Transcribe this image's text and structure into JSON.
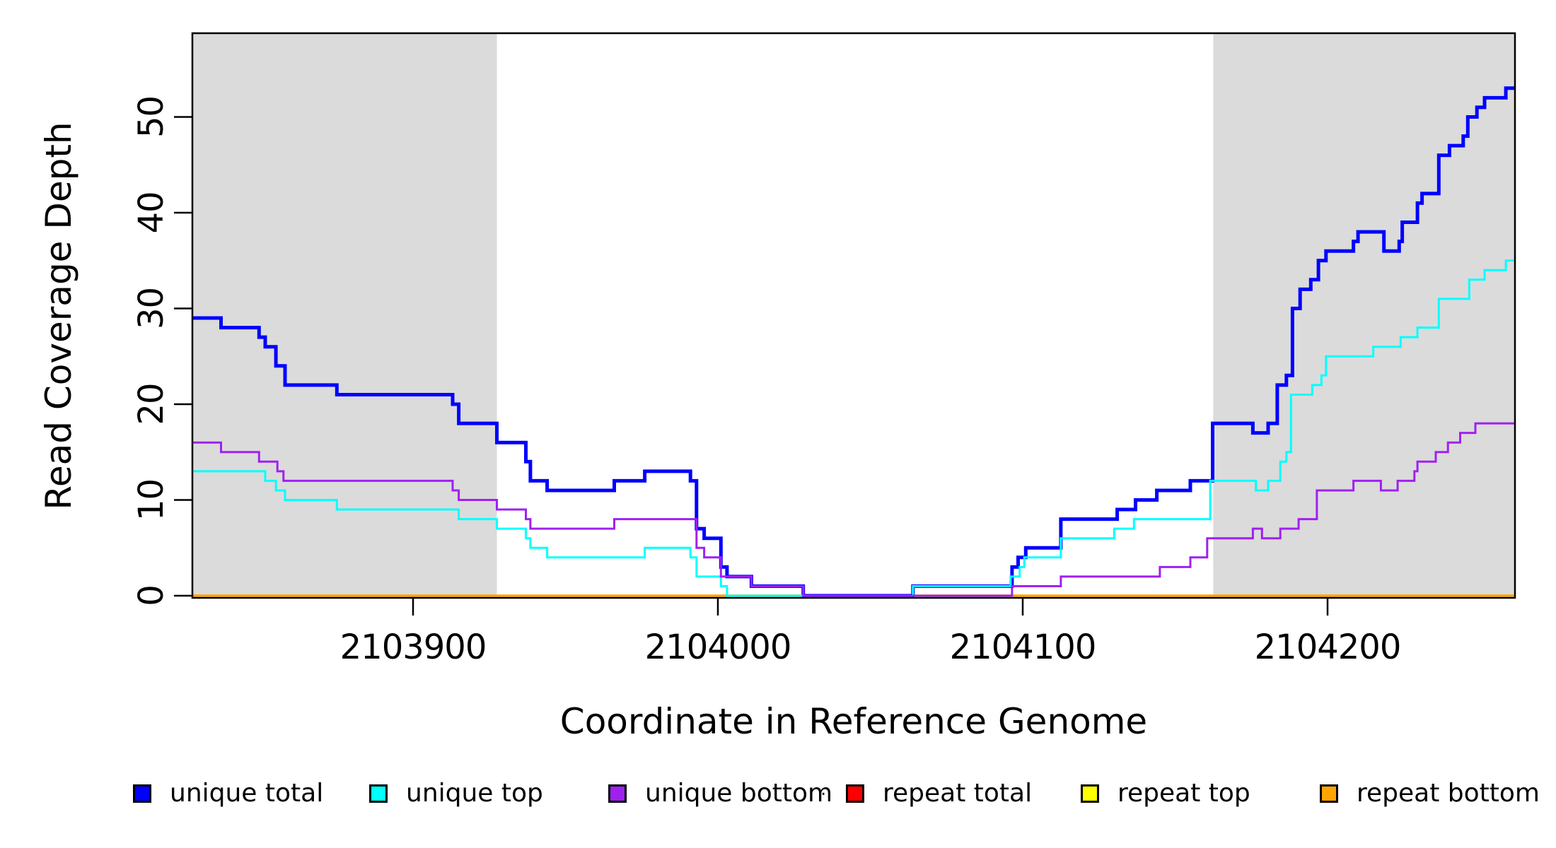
{
  "chart_data": {
    "type": "line",
    "line_style": "step",
    "title": "",
    "xlabel": "Coordinate in Reference Genome",
    "ylabel": "Read Coverage Depth",
    "xlim": [
      2103827.6,
      2104261.5
    ],
    "ylim": [
      0,
      58.8
    ],
    "x_ticks": [
      "2103900",
      "2104000",
      "2104100",
      "2104200"
    ],
    "y_ticks": [
      "0",
      "10",
      "20",
      "30",
      "40",
      "50"
    ],
    "grid": false,
    "legend_position": "bottom",
    "background_color": "#FFFFFF",
    "band_color": "#DBDBDB",
    "axis_color": "#000000",
    "shaded_regions": [
      {
        "from": 2103827.6,
        "to": 2103927.5
      },
      {
        "from": 2104162.5,
        "to": 2104261.5
      }
    ],
    "series": [
      {
        "name": "unique total",
        "color": "#0000FF",
        "line_width": 5,
        "points": [
          [
            2103827.6,
            29
          ],
          [
            2103837,
            28
          ],
          [
            2103849.5,
            27
          ],
          [
            2103851.5,
            26
          ],
          [
            2103855,
            24
          ],
          [
            2103858,
            22
          ],
          [
            2103875,
            21
          ],
          [
            2103913,
            20
          ],
          [
            2103915,
            18
          ],
          [
            2103927.5,
            16
          ],
          [
            2103937,
            14
          ],
          [
            2103938.5,
            12
          ],
          [
            2103944,
            11
          ],
          [
            2103966,
            12
          ],
          [
            2103976,
            13
          ],
          [
            2103991,
            12
          ],
          [
            2103993,
            7
          ],
          [
            2103995.5,
            6
          ],
          [
            2104001,
            3
          ],
          [
            2104003,
            2
          ],
          [
            2104011,
            1
          ],
          [
            2104028,
            0
          ],
          [
            2104064,
            1
          ],
          [
            2104096.5,
            3
          ],
          [
            2104098.5,
            4
          ],
          [
            2104101,
            5
          ],
          [
            2104112.5,
            8
          ],
          [
            2104131,
            9
          ],
          [
            2104137,
            10
          ],
          [
            2104144,
            11
          ],
          [
            2104155,
            12
          ],
          [
            2104162.3,
            18
          ],
          [
            2104175.5,
            17
          ],
          [
            2104180.5,
            18
          ],
          [
            2104183.5,
            22
          ],
          [
            2104186.5,
            23
          ],
          [
            2104188.5,
            30
          ],
          [
            2104191,
            32
          ],
          [
            2104194.5,
            33
          ],
          [
            2104197,
            35
          ],
          [
            2104199.5,
            36
          ],
          [
            2104208.5,
            37
          ],
          [
            2104210,
            38
          ],
          [
            2104218.5,
            36
          ],
          [
            2104223.5,
            37
          ],
          [
            2104224.5,
            39
          ],
          [
            2104229.5,
            41
          ],
          [
            2104231,
            42
          ],
          [
            2104236.5,
            46
          ],
          [
            2104240,
            47
          ],
          [
            2104244.5,
            48
          ],
          [
            2104246,
            50
          ],
          [
            2104249,
            51
          ],
          [
            2104251.5,
            52
          ],
          [
            2104258.5,
            53
          ]
        ]
      },
      {
        "name": "unique top",
        "color": "#00FFFF",
        "line_width": 3,
        "points": [
          [
            2103827.6,
            13
          ],
          [
            2103851.5,
            12
          ],
          [
            2103855,
            11
          ],
          [
            2103858,
            10
          ],
          [
            2103875,
            9
          ],
          [
            2103915,
            8
          ],
          [
            2103927.5,
            7
          ],
          [
            2103937,
            6
          ],
          [
            2103938.5,
            5
          ],
          [
            2103944,
            4
          ],
          [
            2103976,
            5
          ],
          [
            2103991,
            4
          ],
          [
            2103993,
            2
          ],
          [
            2104001,
            1
          ],
          [
            2104003,
            0
          ],
          [
            2104064,
            1
          ],
          [
            2104096,
            2
          ],
          [
            2104099,
            3
          ],
          [
            2104100.5,
            4
          ],
          [
            2104112.5,
            6
          ],
          [
            2104130,
            7
          ],
          [
            2104136.5,
            8
          ],
          [
            2104161.5,
            12
          ],
          [
            2104176.5,
            11
          ],
          [
            2104180.5,
            12
          ],
          [
            2104184.5,
            14
          ],
          [
            2104186.5,
            15
          ],
          [
            2104188,
            21
          ],
          [
            2104195,
            22
          ],
          [
            2104198,
            23
          ],
          [
            2104199.5,
            25
          ],
          [
            2104215,
            26
          ],
          [
            2104224,
            27
          ],
          [
            2104229.5,
            28
          ],
          [
            2104236.5,
            31
          ],
          [
            2104246.5,
            33
          ],
          [
            2104251.5,
            34
          ],
          [
            2104258.5,
            35
          ]
        ]
      },
      {
        "name": "unique bottom",
        "color": "#A020F0",
        "line_width": 3,
        "points": [
          [
            2103827.6,
            16
          ],
          [
            2103837,
            15
          ],
          [
            2103849.5,
            14
          ],
          [
            2103855.5,
            13
          ],
          [
            2103857.5,
            12
          ],
          [
            2103913,
            11
          ],
          [
            2103915,
            10
          ],
          [
            2103927.5,
            9
          ],
          [
            2103937,
            8
          ],
          [
            2103938.5,
            7
          ],
          [
            2103966,
            8
          ],
          [
            2103993,
            5
          ],
          [
            2103995.5,
            4
          ],
          [
            2104001,
            2
          ],
          [
            2104011,
            1
          ],
          [
            2104028,
            0
          ],
          [
            2104096.5,
            1
          ],
          [
            2104112.5,
            2
          ],
          [
            2104145,
            3
          ],
          [
            2104155,
            4
          ],
          [
            2104160.5,
            6
          ],
          [
            2104175.5,
            7
          ],
          [
            2104178.5,
            6
          ],
          [
            2104184.5,
            7
          ],
          [
            2104190.5,
            8
          ],
          [
            2104196.5,
            11
          ],
          [
            2104208.5,
            12
          ],
          [
            2104217.5,
            11
          ],
          [
            2104223,
            12
          ],
          [
            2104228.5,
            13
          ],
          [
            2104229.5,
            14
          ],
          [
            2104235.5,
            15
          ],
          [
            2104239.5,
            16
          ],
          [
            2104243.5,
            17
          ],
          [
            2104248.5,
            18
          ]
        ]
      },
      {
        "name": "repeat total",
        "color": "#FF0000",
        "line_width": 3,
        "points": [
          [
            2103827.6,
            0
          ]
        ]
      },
      {
        "name": "repeat top",
        "color": "#FFFF00",
        "line_width": 3,
        "points": [
          [
            2103827.6,
            0
          ]
        ]
      },
      {
        "name": "repeat bottom",
        "color": "#FFA500",
        "line_width": 3.5,
        "points": [
          [
            2103827.6,
            0
          ]
        ]
      }
    ],
    "draw_order": [
      3,
      4,
      5,
      0,
      1,
      2
    ]
  },
  "decorations": {
    "stray_mark": "."
  }
}
